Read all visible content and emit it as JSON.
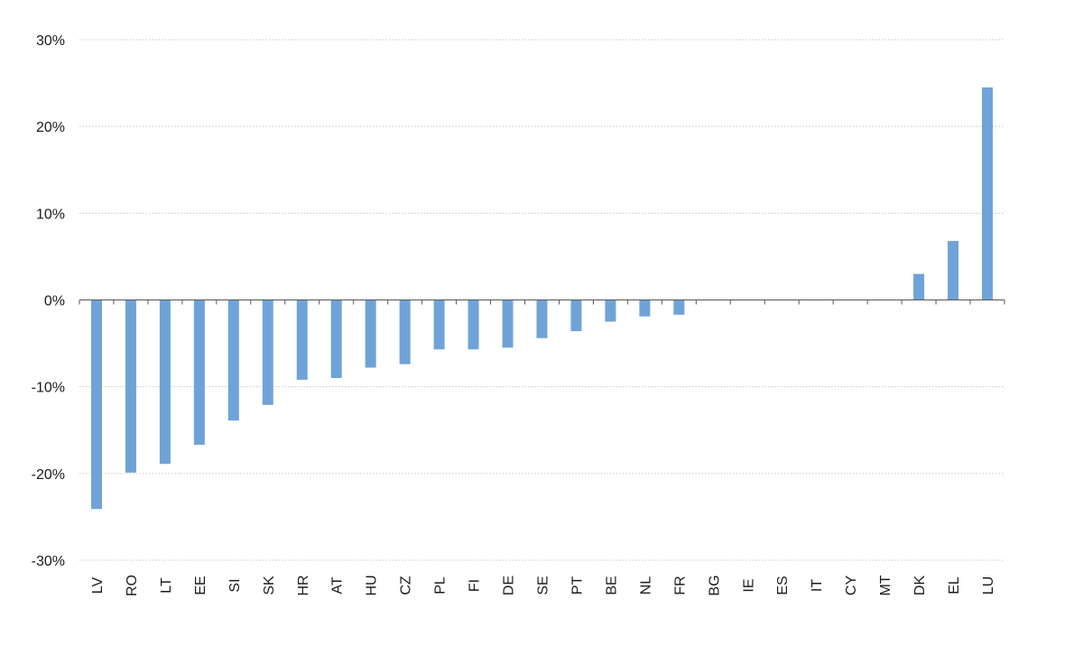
{
  "chart_data": {
    "type": "bar",
    "categories": [
      "LV",
      "RO",
      "LT",
      "EE",
      "SI",
      "SK",
      "HR",
      "AT",
      "HU",
      "CZ",
      "PL",
      "FI",
      "DE",
      "SE",
      "PT",
      "BE",
      "NL",
      "FR",
      "BG",
      "IE",
      "ES",
      "IT",
      "CY",
      "MT",
      "DK",
      "EL",
      "LU"
    ],
    "values": [
      -24.1,
      -19.9,
      -18.9,
      -16.7,
      -13.9,
      -12.1,
      -9.2,
      -9.0,
      -7.8,
      -7.4,
      -5.7,
      -5.7,
      -5.5,
      -4.4,
      -3.6,
      -2.5,
      -1.9,
      -1.7,
      0,
      0,
      0,
      0,
      0,
      0,
      3.0,
      6.8,
      24.5
    ],
    "yticks": [
      "30%",
      "20%",
      "10%",
      "0%",
      "-10%",
      "-20%",
      "-30%"
    ],
    "ylim": [
      -30,
      30
    ],
    "grid": true,
    "bar_color": "#6fa3d8",
    "title": "",
    "xlabel": "",
    "ylabel": ""
  }
}
